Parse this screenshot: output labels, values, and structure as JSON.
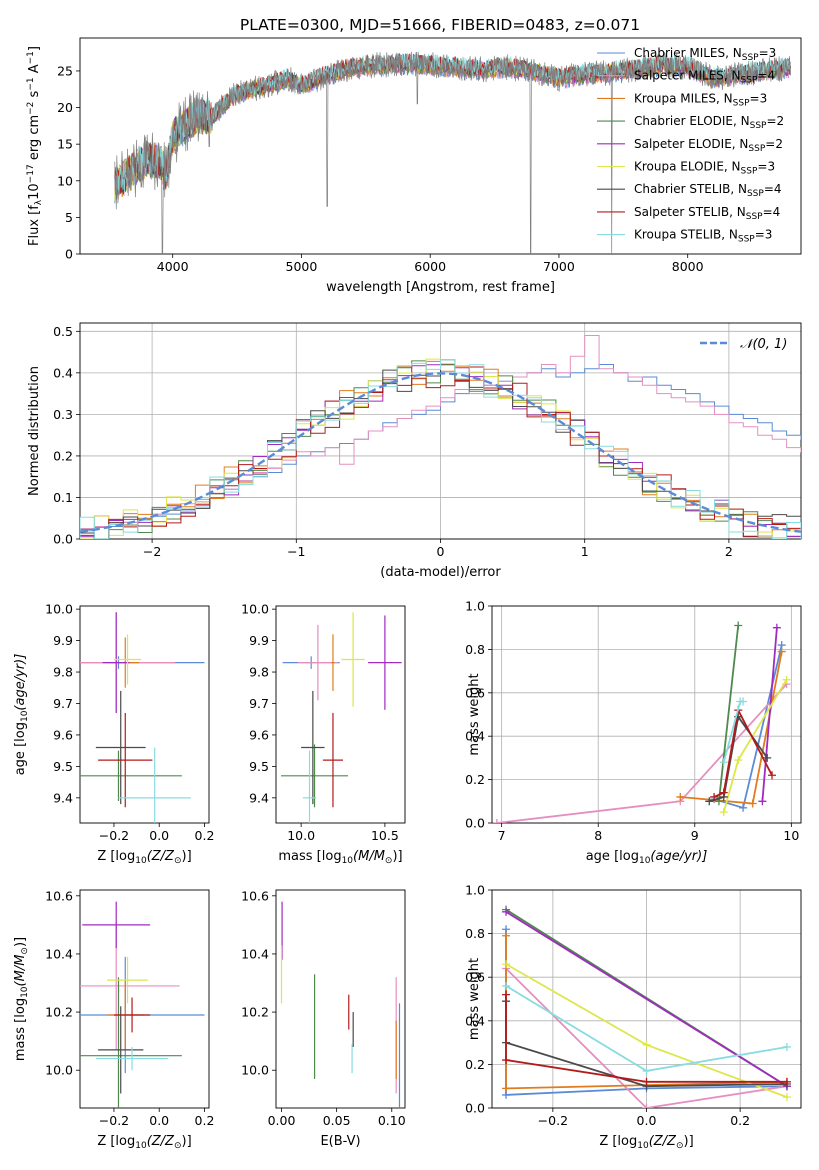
{
  "figure_title": "PLATE=0300, MJD=51666, FIBERID=0483, z=0.071",
  "colors": {
    "Chabrier MILES": "#5b8bd6",
    "Salpeter MILES": "#e58fc0",
    "Kroupa MILES": "#e07c1f",
    "Chabrier ELODIE": "#4e8a4e",
    "Salpeter ELODIE": "#a02bbf",
    "Kroupa ELODIE": "#dde64a",
    "Chabrier STELIB": "#4a4a4a",
    "Salpeter STELIB": "#b31b1b",
    "Kroupa STELIB": "#88dbe0",
    "data_spectrum": "#808080",
    "normal_curve": "#5b8bd6"
  },
  "chart_data": [
    {
      "id": "spectrum",
      "type": "line",
      "title": "PLATE=0300, MJD=51666, FIBERID=0483, z=0.071",
      "xlabel": "wavelength [Angstrom, rest frame]",
      "ylabel_main": "Flux [f",
      "ylabel_sub": "λ",
      "ylabel_rest": "10",
      "ylabel_exp1": "−17",
      "ylabel_mid": " erg cm",
      "ylabel_exp2": "−2",
      "ylabel_s": " s",
      "ylabel_exp3": "−1",
      "ylabel_a": " A",
      "ylabel_exp4": "−1",
      "ylabel_end": "]",
      "xlim": [
        3280,
        8880
      ],
      "ylim": [
        0,
        29.5
      ],
      "xticks": [
        4000,
        5000,
        6000,
        7000,
        8000
      ],
      "yticks": [
        0,
        5,
        10,
        15,
        20,
        25
      ],
      "continuum_x": [
        3550,
        3700,
        3800,
        3900,
        3950,
        4000,
        4100,
        4200,
        4300,
        4400,
        4500,
        4700,
        4900,
        5000,
        5200,
        5400,
        5600,
        5800,
        6000,
        6200,
        6400,
        6600,
        6800,
        7000,
        7200,
        7400,
        7600,
        7800,
        8000,
        8200,
        8400,
        8600,
        8800
      ],
      "continuum_y": [
        9.5,
        11.5,
        13.0,
        12.5,
        11.0,
        16.0,
        17.5,
        19.0,
        18.5,
        20.5,
        22.0,
        22.8,
        24.0,
        23.0,
        24.5,
        25.5,
        25.8,
        26.0,
        25.8,
        25.5,
        25.2,
        25.5,
        25.0,
        24.0,
        24.6,
        24.8,
        25.2,
        25.8,
        25.5,
        24.0,
        24.5,
        25.0,
        25.5
      ],
      "series": [
        {
          "name": "Chabrier MILES",
          "nssp": "3"
        },
        {
          "name": "Salpeter MILES",
          "nssp": "4"
        },
        {
          "name": "Kroupa MILES",
          "nssp": "3"
        },
        {
          "name": "Chabrier ELODIE",
          "nssp": "2"
        },
        {
          "name": "Salpeter ELODIE",
          "nssp": "2"
        },
        {
          "name": "Kroupa ELODIE",
          "nssp": "3"
        },
        {
          "name": "Chabrier STELIB",
          "nssp": "4"
        },
        {
          "name": "Salpeter STELIB",
          "nssp": "4"
        },
        {
          "name": "Kroupa STELIB",
          "nssp": "3"
        }
      ],
      "legend_nssp_prefix": ", N",
      "legend_nssp_sub": "SSP",
      "legend_location": "upper-right"
    },
    {
      "id": "residuals",
      "type": "bar",
      "xlabel": "(data-model)/error",
      "ylabel": "Normed distribution",
      "xlim": [
        -2.5,
        2.5
      ],
      "ylim": [
        0,
        0.52
      ],
      "xticks": [
        -2,
        -1,
        0,
        1,
        2
      ],
      "xtick_labels": [
        "−2",
        "−1",
        "0",
        "1",
        "2"
      ],
      "yticks": [
        0.0,
        0.1,
        0.2,
        0.3,
        0.4,
        0.5
      ],
      "grid": true,
      "bin_width": 0.1,
      "bin_start": -2.5,
      "legend_label": "𝒩(0, 1)",
      "legend_location": "upper-right",
      "histograms": [
        {
          "name": "Chabrier MILES",
          "values": [
            0.02,
            0.028,
            0.03,
            0.04,
            0.048,
            0.055,
            0.06,
            0.07,
            0.08,
            0.1,
            0.12,
            0.14,
            0.15,
            0.16,
            0.18,
            0.2,
            0.21,
            0.22,
            0.23,
            0.24,
            0.26,
            0.28,
            0.29,
            0.3,
            0.31,
            0.33,
            0.35,
            0.36,
            0.37,
            0.38,
            0.39,
            0.4,
            0.41,
            0.39,
            0.4,
            0.41,
            0.42,
            0.4,
            0.38,
            0.39,
            0.37,
            0.36,
            0.35,
            0.33,
            0.32,
            0.3,
            0.29,
            0.28,
            0.26,
            0.25,
            0.24,
            0.22,
            0.2,
            0.19,
            0.17,
            0.16,
            0.14,
            0.13,
            0.11,
            0.1,
            0.09,
            0.08,
            0.07,
            0.06,
            0.05,
            0.045,
            0.04,
            0.03,
            0.025,
            0.02
          ]
        },
        {
          "name": "Salpeter MILES",
          "values": [
            0.025,
            0.03,
            0.035,
            0.04,
            0.05,
            0.06,
            0.075,
            0.085,
            0.095,
            0.11,
            0.12,
            0.14,
            0.16,
            0.17,
            0.19,
            0.21,
            0.2,
            0.22,
            0.18,
            0.24,
            0.26,
            0.27,
            0.29,
            0.31,
            0.32,
            0.34,
            0.36,
            0.35,
            0.37,
            0.38,
            0.39,
            0.4,
            0.42,
            0.4,
            0.44,
            0.49,
            0.41,
            0.4,
            0.39,
            0.37,
            0.35,
            0.34,
            0.33,
            0.32,
            0.3,
            0.28,
            0.27,
            0.25,
            0.24,
            0.22,
            0.21,
            0.19,
            0.18,
            0.16,
            0.15,
            0.13,
            0.11,
            0.1,
            0.09,
            0.08,
            0.07,
            0.06,
            0.055,
            0.045,
            0.04,
            0.035,
            0.03,
            0.025,
            0.02,
            0.02
          ]
        }
      ],
      "normal_curve": true
    },
    {
      "id": "age-vs-Z",
      "type": "scatter",
      "xlabel": "Z [log",
      "xlabel_sub": "10",
      "xlabel_rest": "(Z/Z",
      "xlabel_sub2": "⊙",
      "xlabel_end": ")]",
      "ylabel": "age  [log",
      "ylabel_sub": "10",
      "ylabel_rest": "(age/yr)]",
      "xlim": [
        -0.35,
        0.22
      ],
      "ylim": [
        9.32,
        10.01
      ],
      "xticks": [
        -0.2,
        0.0,
        0.2
      ],
      "xtick_labels": [
        "−0.2",
        "0.0",
        "0.2"
      ],
      "yticks": [
        9.4,
        9.5,
        9.6,
        9.7,
        9.8,
        9.9,
        10.0
      ],
      "points": [
        {
          "name": "Chabrier MILES",
          "x": -0.18,
          "y": 9.83,
          "xerr": 0.38,
          "yerr": 0.02
        },
        {
          "name": "Salpeter MILES",
          "x": -0.19,
          "y": 9.83,
          "xerr": 0.26,
          "yerr": 0.16
        },
        {
          "name": "Kroupa MILES",
          "x": -0.15,
          "y": 9.83,
          "xerr": 0.06,
          "yerr": 0.08
        },
        {
          "name": "Chabrier ELODIE",
          "x": -0.18,
          "y": 9.47,
          "xerr": 0.28,
          "yerr": 0.08
        },
        {
          "name": "Salpeter ELODIE",
          "x": -0.19,
          "y": 9.83,
          "xerr": 0.06,
          "yerr": 0.16
        },
        {
          "name": "Kroupa ELODIE",
          "x": -0.14,
          "y": 9.84,
          "xerr": 0.06,
          "yerr": 0.08
        },
        {
          "name": "Chabrier STELIB",
          "x": -0.17,
          "y": 9.56,
          "xerr": 0.11,
          "yerr": 0.18
        },
        {
          "name": "Salpeter STELIB",
          "x": -0.15,
          "y": 9.52,
          "xerr": 0.12,
          "yerr": 0.15
        },
        {
          "name": "Kroupa STELIB",
          "x": -0.02,
          "y": 9.4,
          "xerr": 0.16,
          "yerr": 0.16
        }
      ]
    },
    {
      "id": "age-vs-mass",
      "type": "scatter",
      "xlabel": "mass [log",
      "xlabel_sub": "10",
      "xlabel_rest": "(M/M",
      "xlabel_sub2": "⊙",
      "xlabel_end": ")]",
      "xlim": [
        9.85,
        10.62
      ],
      "ylim": [
        9.32,
        10.01
      ],
      "xticks": [
        10.0,
        10.5
      ],
      "xtick_labels": [
        "10.0",
        "10.5"
      ],
      "yticks": [
        9.4,
        9.5,
        9.6,
        9.7,
        9.8,
        9.9,
        10.0
      ],
      "points": [
        {
          "name": "Chabrier MILES",
          "x": 10.06,
          "y": 9.83,
          "xerr": 0.17,
          "yerr": 0.02
        },
        {
          "name": "Salpeter MILES",
          "x": 10.1,
          "y": 9.83,
          "xerr": 0.12,
          "yerr": 0.12
        },
        {
          "name": "Kroupa MILES",
          "x": 10.19,
          "y": 9.83,
          "xerr": 0.01,
          "yerr": 0.09
        },
        {
          "name": "Chabrier ELODIE",
          "x": 10.08,
          "y": 9.47,
          "xerr": 0.2,
          "yerr": 0.1
        },
        {
          "name": "Salpeter ELODIE",
          "x": 10.5,
          "y": 9.83,
          "xerr": 0.1,
          "yerr": 0.15
        },
        {
          "name": "Kroupa ELODIE",
          "x": 10.31,
          "y": 9.84,
          "xerr": 0.07,
          "yerr": 0.15
        },
        {
          "name": "Chabrier STELIB",
          "x": 10.07,
          "y": 9.56,
          "xerr": 0.07,
          "yerr": 0.18
        },
        {
          "name": "Salpeter STELIB",
          "x": 10.19,
          "y": 9.52,
          "xerr": 0.06,
          "yerr": 0.15
        },
        {
          "name": "Kroupa STELIB",
          "x": 10.05,
          "y": 9.4,
          "xerr": 0.04,
          "yerr": 0.15
        }
      ]
    },
    {
      "id": "weight-vs-age",
      "type": "line",
      "xlabel": "age  [log",
      "xlabel_sub": "10",
      "xlabel_rest": "(age/yr)]",
      "ylabel": "mass weight",
      "xlim": [
        6.9,
        10.1
      ],
      "ylim": [
        0.0,
        1.0
      ],
      "xticks": [
        7,
        8,
        9,
        10
      ],
      "yticks": [
        0.0,
        0.2,
        0.4,
        0.6,
        0.8,
        1.0
      ],
      "grid": true,
      "lines": [
        {
          "name": "Chabrier MILES",
          "x": [
            9.2,
            9.5,
            9.9
          ],
          "y": [
            0.11,
            0.07,
            0.82
          ]
        },
        {
          "name": "Salpeter MILES",
          "x": [
            6.95,
            8.85,
            9.95
          ],
          "y": [
            0.0,
            0.1,
            0.64
          ]
        },
        {
          "name": "Kroupa MILES",
          "x": [
            8.85,
            9.6,
            9.9
          ],
          "y": [
            0.12,
            0.09,
            0.79
          ]
        },
        {
          "name": "Chabrier ELODIE",
          "x": [
            9.25,
            9.45
          ],
          "y": [
            0.1,
            0.91
          ]
        },
        {
          "name": "Salpeter ELODIE",
          "x": [
            9.7,
            9.85
          ],
          "y": [
            0.1,
            0.9
          ]
        },
        {
          "name": "Kroupa ELODIE",
          "x": [
            9.3,
            9.45,
            9.95
          ],
          "y": [
            0.05,
            0.29,
            0.66
          ]
        },
        {
          "name": "Chabrier STELIB",
          "x": [
            9.15,
            9.3,
            9.45,
            9.75
          ],
          "y": [
            0.1,
            0.12,
            0.49,
            0.3
          ]
        },
        {
          "name": "Salpeter STELIB",
          "x": [
            9.2,
            9.3,
            9.45,
            9.8
          ],
          "y": [
            0.12,
            0.14,
            0.52,
            0.22
          ]
        },
        {
          "name": "Kroupa STELIB",
          "x": [
            9.3,
            9.47,
            9.5
          ],
          "y": [
            0.28,
            0.56,
            0.56
          ]
        }
      ]
    },
    {
      "id": "mass-vs-Z",
      "type": "scatter",
      "xlabel": "Z [log",
      "xlabel_sub": "10",
      "xlabel_rest": "(Z/Z",
      "xlabel_sub2": "⊙",
      "xlabel_end": ")]",
      "ylabel": "mass [log",
      "ylabel_sub": "10",
      "ylabel_rest": "(M/M",
      "ylabel_sub2": "⊙",
      "ylabel_end": ")]",
      "xlim": [
        -0.35,
        0.22
      ],
      "ylim": [
        9.87,
        10.62
      ],
      "xticks": [
        -0.2,
        0.0,
        0.2
      ],
      "xtick_labels": [
        "−0.2",
        "0.0",
        "0.2"
      ],
      "yticks": [
        10.0,
        10.2,
        10.4,
        10.6
      ],
      "points": [
        {
          "name": "Chabrier MILES",
          "x": -0.15,
          "y": 10.19,
          "xerr": 0.35,
          "yerr": 0.2
        },
        {
          "name": "Salpeter MILES",
          "x": -0.19,
          "y": 10.29,
          "xerr": 0.28,
          "yerr": 0.22
        },
        {
          "name": "Kroupa MILES",
          "x": -0.15,
          "y": 10.19,
          "xerr": 0.08,
          "yerr": 0.12
        },
        {
          "name": "Chabrier ELODIE",
          "x": -0.18,
          "y": 10.05,
          "xerr": 0.28,
          "yerr": 0.27
        },
        {
          "name": "Salpeter ELODIE",
          "x": -0.19,
          "y": 10.5,
          "xerr": 0.15,
          "yerr": 0.08
        },
        {
          "name": "Kroupa ELODIE",
          "x": -0.14,
          "y": 10.31,
          "xerr": 0.09,
          "yerr": 0.08
        },
        {
          "name": "Chabrier STELIB",
          "x": -0.17,
          "y": 10.07,
          "xerr": 0.1,
          "yerr": 0.15
        },
        {
          "name": "Salpeter STELIB",
          "x": -0.12,
          "y": 10.19,
          "xerr": 0.08,
          "yerr": 0.06
        },
        {
          "name": "Kroupa STELIB",
          "x": -0.12,
          "y": 10.04,
          "xerr": 0.16,
          "yerr": 0.04
        }
      ]
    },
    {
      "id": "mass-vs-EBV",
      "type": "scatter",
      "xlabel": "E(B-V)",
      "xlim": [
        -0.005,
        0.112
      ],
      "ylim": [
        9.87,
        10.62
      ],
      "xticks": [
        0.0,
        0.05,
        0.1
      ],
      "xtick_labels": [
        "0.00",
        "0.05",
        "0.10"
      ],
      "yticks": [
        10.0,
        10.2,
        10.4,
        10.6
      ],
      "points": [
        {
          "name": "Chabrier MILES",
          "x": 0.107,
          "y": 10.05,
          "xerr": 0,
          "yerr": 0.18
        },
        {
          "name": "Salpeter MILES",
          "x": 0.104,
          "y": 10.12,
          "xerr": 0,
          "yerr": 0.2
        },
        {
          "name": "Kroupa MILES",
          "x": 0.104,
          "y": 10.07,
          "xerr": 0,
          "yerr": 0.1
        },
        {
          "name": "Chabrier ELODIE",
          "x": 0.03,
          "y": 10.15,
          "xerr": 0,
          "yerr": 0.18
        },
        {
          "name": "Salpeter ELODIE",
          "x": 0.0005,
          "y": 10.48,
          "xerr": 0,
          "yerr": 0.1
        },
        {
          "name": "Kroupa ELODIE",
          "x": 0.0,
          "y": 10.33,
          "xerr": 0,
          "yerr": 0.1
        },
        {
          "name": "Chabrier STELIB",
          "x": 0.065,
          "y": 10.14,
          "xerr": 0,
          "yerr": 0.06
        },
        {
          "name": "Salpeter STELIB",
          "x": 0.061,
          "y": 10.2,
          "xerr": 0,
          "yerr": 0.06
        },
        {
          "name": "Kroupa STELIB",
          "x": 0.064,
          "y": 10.04,
          "xerr": 0,
          "yerr": 0.05
        }
      ]
    },
    {
      "id": "weight-vs-Z",
      "type": "line",
      "xlabel": "Z [log",
      "xlabel_sub": "10",
      "xlabel_rest": "(Z/Z",
      "xlabel_sub2": "⊙",
      "xlabel_end": ")]",
      "ylabel": "mass weight",
      "xlim": [
        -0.33,
        0.33
      ],
      "ylim": [
        0.0,
        1.0
      ],
      "xticks": [
        -0.2,
        0.0,
        0.2
      ],
      "xtick_labels": [
        "−0.2",
        "0.0",
        "0.2"
      ],
      "yticks": [
        0.0,
        0.2,
        0.4,
        0.6,
        0.8,
        1.0
      ],
      "grid": true,
      "lines": [
        {
          "name": "Chabrier MILES",
          "x": [
            -0.3,
            -0.3,
            0.0,
            0.3
          ],
          "y": [
            0.82,
            0.06,
            0.09,
            0.1
          ]
        },
        {
          "name": "Salpeter MILES",
          "x": [
            -0.3,
            0.0,
            0.3
          ],
          "y": [
            0.64,
            0.0,
            0.1
          ]
        },
        {
          "name": "Kroupa MILES",
          "x": [
            -0.3,
            -0.3,
            0.3
          ],
          "y": [
            0.79,
            0.09,
            0.12
          ]
        },
        {
          "name": "Chabrier ELODIE",
          "x": [
            -0.3,
            0.3
          ],
          "y": [
            0.91,
            0.1
          ]
        },
        {
          "name": "Salpeter ELODIE",
          "x": [
            -0.3,
            0.3
          ],
          "y": [
            0.9,
            0.1
          ]
        },
        {
          "name": "Kroupa ELODIE",
          "x": [
            -0.3,
            0.0,
            0.3
          ],
          "y": [
            0.66,
            0.29,
            0.05
          ]
        },
        {
          "name": "Chabrier STELIB",
          "x": [
            -0.3,
            -0.3,
            0.0,
            0.3
          ],
          "y": [
            0.49,
            0.3,
            0.1,
            0.11
          ]
        },
        {
          "name": "Salpeter STELIB",
          "x": [
            -0.3,
            -0.3,
            0.0,
            0.3
          ],
          "y": [
            0.52,
            0.22,
            0.12,
            0.12
          ]
        },
        {
          "name": "Kroupa STELIB",
          "x": [
            -0.3,
            0.0,
            0.3
          ],
          "y": [
            0.56,
            0.17,
            0.28
          ]
        }
      ]
    }
  ]
}
